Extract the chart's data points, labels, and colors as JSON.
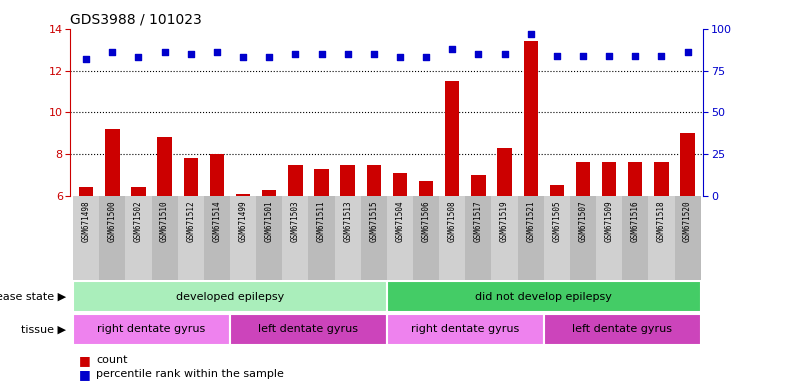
{
  "title": "GDS3988 / 101023",
  "samples": [
    "GSM671498",
    "GSM671500",
    "GSM671502",
    "GSM671510",
    "GSM671512",
    "GSM671514",
    "GSM671499",
    "GSM671501",
    "GSM671503",
    "GSM671511",
    "GSM671513",
    "GSM671515",
    "GSM671504",
    "GSM671506",
    "GSM671508",
    "GSM671517",
    "GSM671519",
    "GSM671521",
    "GSM671505",
    "GSM671507",
    "GSM671509",
    "GSM671516",
    "GSM671518",
    "GSM671520"
  ],
  "counts": [
    6.4,
    9.2,
    6.4,
    8.8,
    7.8,
    8.0,
    6.1,
    6.3,
    7.5,
    7.3,
    7.5,
    7.5,
    7.1,
    6.7,
    11.5,
    7.0,
    8.3,
    13.4,
    6.5,
    7.6,
    7.6,
    7.6,
    7.6,
    9.0
  ],
  "percentiles": [
    82,
    86,
    83,
    86,
    85,
    86,
    83,
    83,
    85,
    85,
    85,
    85,
    83,
    83,
    88,
    85,
    85,
    97,
    84,
    84,
    84,
    84,
    84,
    86
  ],
  "bar_color": "#cc0000",
  "dot_color": "#0000cc",
  "ylim_left": [
    6,
    14
  ],
  "ylim_right": [
    0,
    100
  ],
  "yticks_left": [
    6,
    8,
    10,
    12,
    14
  ],
  "yticks_right": [
    0,
    25,
    50,
    75,
    100
  ],
  "hlines": [
    8,
    10,
    12
  ],
  "disease_state_groups": [
    {
      "label": "developed epilepsy",
      "start": 0,
      "end": 11,
      "color": "#aaeebb"
    },
    {
      "label": "did not develop epilepsy",
      "start": 12,
      "end": 23,
      "color": "#44cc66"
    }
  ],
  "tissue_groups": [
    {
      "label": "right dentate gyrus",
      "start": 0,
      "end": 5,
      "color": "#ee82ee"
    },
    {
      "label": "left dentate gyrus",
      "start": 6,
      "end": 11,
      "color": "#cc44bb"
    },
    {
      "label": "right dentate gyrus",
      "start": 12,
      "end": 17,
      "color": "#ee82ee"
    },
    {
      "label": "left dentate gyrus",
      "start": 18,
      "end": 23,
      "color": "#cc44bb"
    }
  ],
  "disease_state_label": "disease state",
  "tissue_label": "tissue",
  "legend_count_label": "count",
  "legend_percentile_label": "percentile rank within the sample",
  "tick_bg_even": "#d0d0d0",
  "tick_bg_odd": "#bbbbbb",
  "col_border_color": "#888888"
}
